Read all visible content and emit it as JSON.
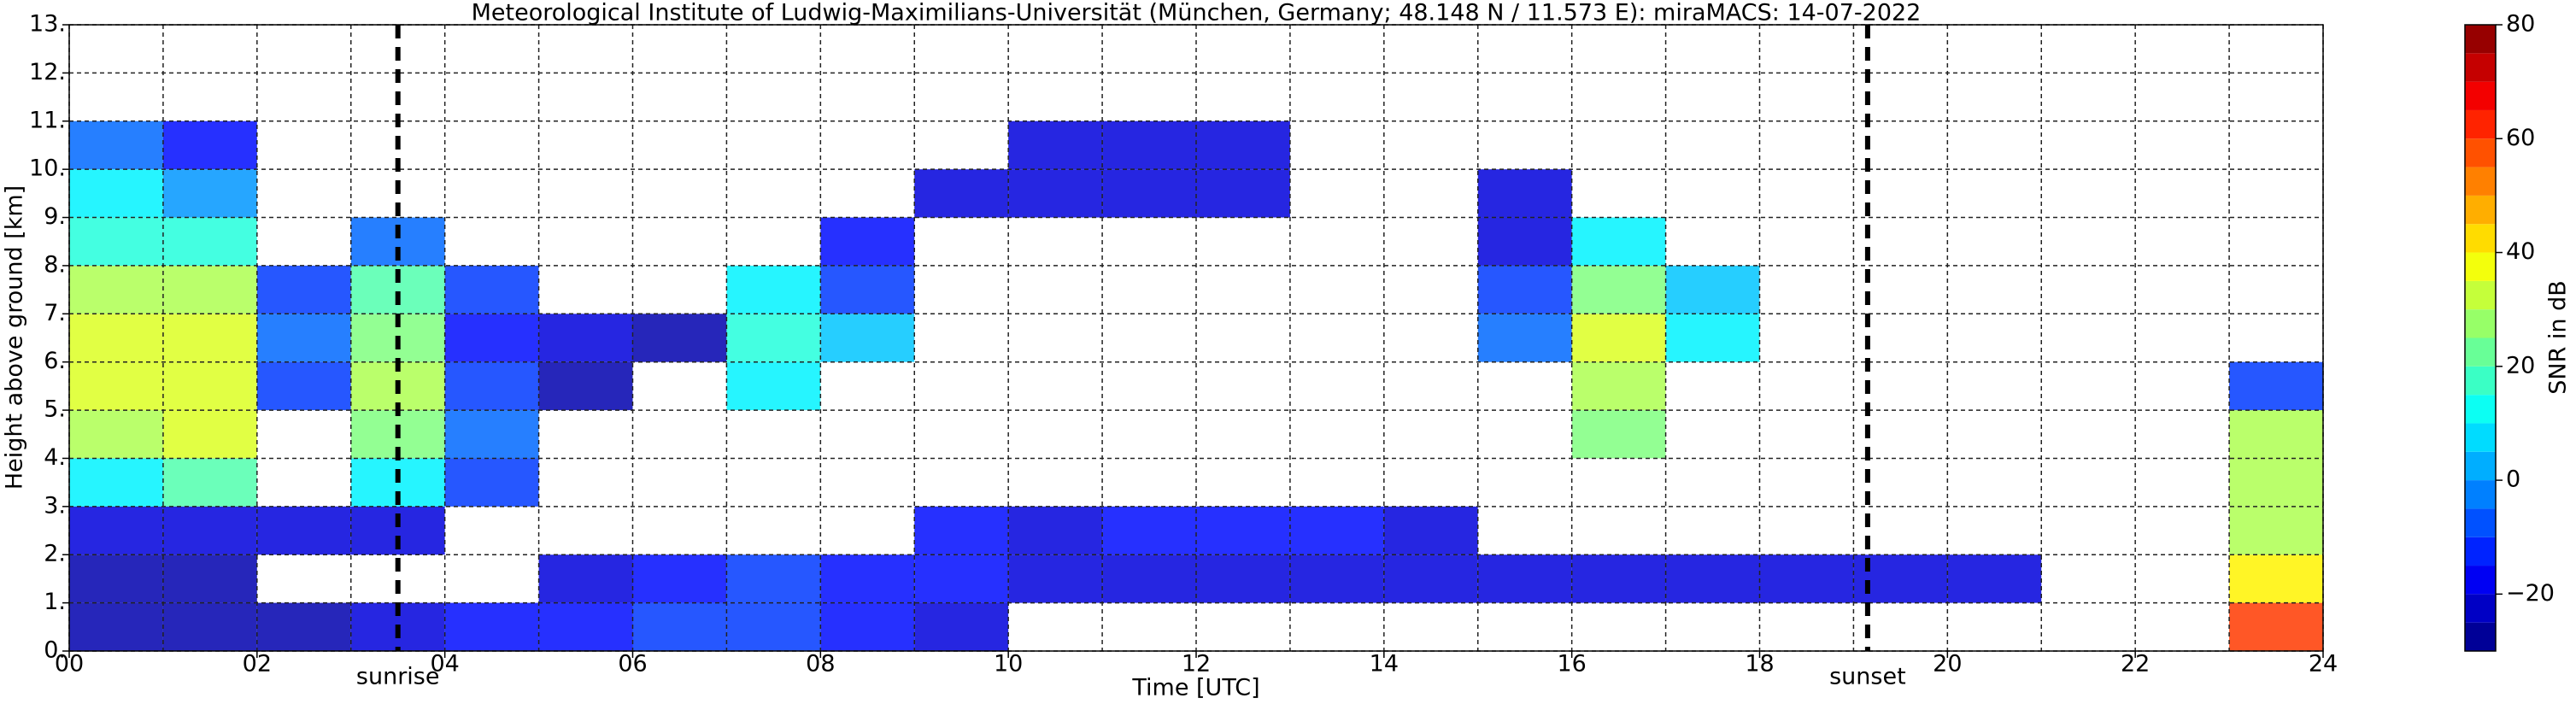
{
  "chart_data": {
    "type": "heatmap",
    "title": "Meteorological Institute of Ludwig-Maximilians-Universität (München, Germany; 48.148 N / 11.573 E):    miraMACS: 14-07-2022",
    "xlabel": "Time [UTC]",
    "ylabel": "Height above ground [km]",
    "xlim": [
      0,
      24
    ],
    "ylim": [
      0,
      13
    ],
    "xticks": [
      {
        "value": 0,
        "label": "00"
      },
      {
        "value": 2,
        "label": "02"
      },
      {
        "value": 4,
        "label": "04"
      },
      {
        "value": 6,
        "label": "06"
      },
      {
        "value": 8,
        "label": "08"
      },
      10,
      12,
      14,
      16,
      18,
      20,
      22,
      24
    ],
    "xminor": [
      1,
      3,
      5,
      7,
      9,
      11,
      13,
      15,
      17,
      19,
      21,
      23
    ],
    "yticks": [
      {
        "value": 0,
        "label": "0."
      },
      {
        "value": 1,
        "label": "1."
      },
      {
        "value": 2,
        "label": "2."
      },
      {
        "value": 3,
        "label": "3."
      },
      {
        "value": 4,
        "label": "4."
      },
      {
        "value": 5,
        "label": "5."
      },
      {
        "value": 6,
        "label": "6."
      },
      {
        "value": 7,
        "label": "7."
      },
      {
        "value": 8,
        "label": "8."
      },
      {
        "value": 9,
        "label": "9."
      },
      {
        "value": 10,
        "label": "10."
      },
      {
        "value": 11,
        "label": "11."
      },
      {
        "value": 12,
        "label": "12."
      },
      {
        "value": 13,
        "label": "13."
      }
    ],
    "grid": true,
    "annotations": [
      {
        "text": "sunrise",
        "x": 3.5
      },
      {
        "text": "sunset",
        "x": 19.15
      }
    ],
    "xbins": [
      0,
      1,
      2,
      3,
      4,
      5,
      6,
      7,
      8,
      9,
      10,
      11,
      12,
      13,
      14,
      15,
      16,
      17,
      18,
      19,
      20,
      21,
      22,
      23,
      24
    ],
    "ybins": [
      0,
      1,
      2,
      3,
      4,
      5,
      6,
      7,
      8,
      9,
      10,
      11,
      12,
      13
    ],
    "z": [
      [
        -25,
        -25,
        -25,
        -20,
        -15,
        -15,
        -10,
        -10,
        -15,
        -20,
        null,
        null,
        null,
        null,
        null,
        null,
        null,
        null,
        null,
        null,
        null,
        null,
        null,
        60
      ],
      [
        -25,
        -25,
        null,
        null,
        null,
        -20,
        -15,
        -10,
        -15,
        -15,
        -20,
        -20,
        -20,
        -20,
        -20,
        -20,
        -20,
        -20,
        -20,
        -20,
        -20,
        null,
        null,
        40
      ],
      [
        -20,
        -20,
        -20,
        -20,
        null,
        null,
        null,
        null,
        null,
        -15,
        -20,
        -15,
        -15,
        -15,
        -20,
        null,
        null,
        null,
        null,
        null,
        null,
        null,
        null,
        30
      ],
      [
        10,
        20,
        null,
        10,
        -10,
        null,
        null,
        null,
        null,
        null,
        null,
        null,
        null,
        null,
        null,
        null,
        null,
        null,
        null,
        null,
        null,
        null,
        null,
        30
      ],
      [
        30,
        35,
        null,
        25,
        -5,
        null,
        null,
        null,
        null,
        null,
        null,
        null,
        null,
        null,
        null,
        null,
        25,
        null,
        null,
        null,
        null,
        null,
        null,
        30
      ],
      [
        35,
        35,
        -10,
        30,
        -10,
        -25,
        null,
        10,
        null,
        null,
        null,
        null,
        null,
        null,
        null,
        null,
        30,
        null,
        null,
        null,
        null,
        null,
        null,
        -10
      ],
      [
        35,
        35,
        -5,
        25,
        -15,
        -20,
        -25,
        15,
        5,
        null,
        null,
        null,
        null,
        null,
        null,
        -5,
        35,
        10,
        null,
        null,
        null,
        null,
        null,
        null
      ],
      [
        30,
        30,
        -10,
        20,
        -10,
        null,
        null,
        10,
        -10,
        null,
        null,
        null,
        null,
        null,
        null,
        -10,
        25,
        5,
        null,
        null,
        null,
        null,
        null,
        null
      ],
      [
        15,
        15,
        null,
        -5,
        null,
        null,
        null,
        null,
        -15,
        null,
        null,
        null,
        null,
        null,
        null,
        -20,
        10,
        null,
        null,
        null,
        null,
        null,
        null,
        null
      ],
      [
        10,
        0,
        null,
        null,
        null,
        null,
        null,
        null,
        null,
        -20,
        -20,
        -20,
        -20,
        null,
        null,
        -20,
        null,
        null,
        null,
        null,
        null,
        null,
        null,
        null
      ],
      [
        -5,
        -15,
        null,
        null,
        null,
        null,
        null,
        null,
        null,
        null,
        -20,
        -20,
        -20,
        null,
        null,
        null,
        null,
        null,
        null,
        null,
        null,
        null,
        null,
        null
      ],
      [
        null,
        null,
        null,
        null,
        null,
        null,
        null,
        null,
        null,
        null,
        null,
        null,
        null,
        null,
        null,
        null,
        null,
        null,
        null,
        null,
        null,
        null,
        null,
        null
      ],
      [
        null,
        null,
        null,
        null,
        null,
        null,
        null,
        null,
        null,
        null,
        null,
        null,
        null,
        null,
        null,
        null,
        null,
        null,
        null,
        null,
        null,
        null,
        null,
        null
      ]
    ],
    "colorbar": {
      "label": "SNR in dB",
      "lim": [
        -30,
        80
      ],
      "step": 5,
      "ticks": [
        {
          "value": -20,
          "label": "−20"
        },
        0,
        20,
        40,
        60,
        80
      ]
    }
  }
}
